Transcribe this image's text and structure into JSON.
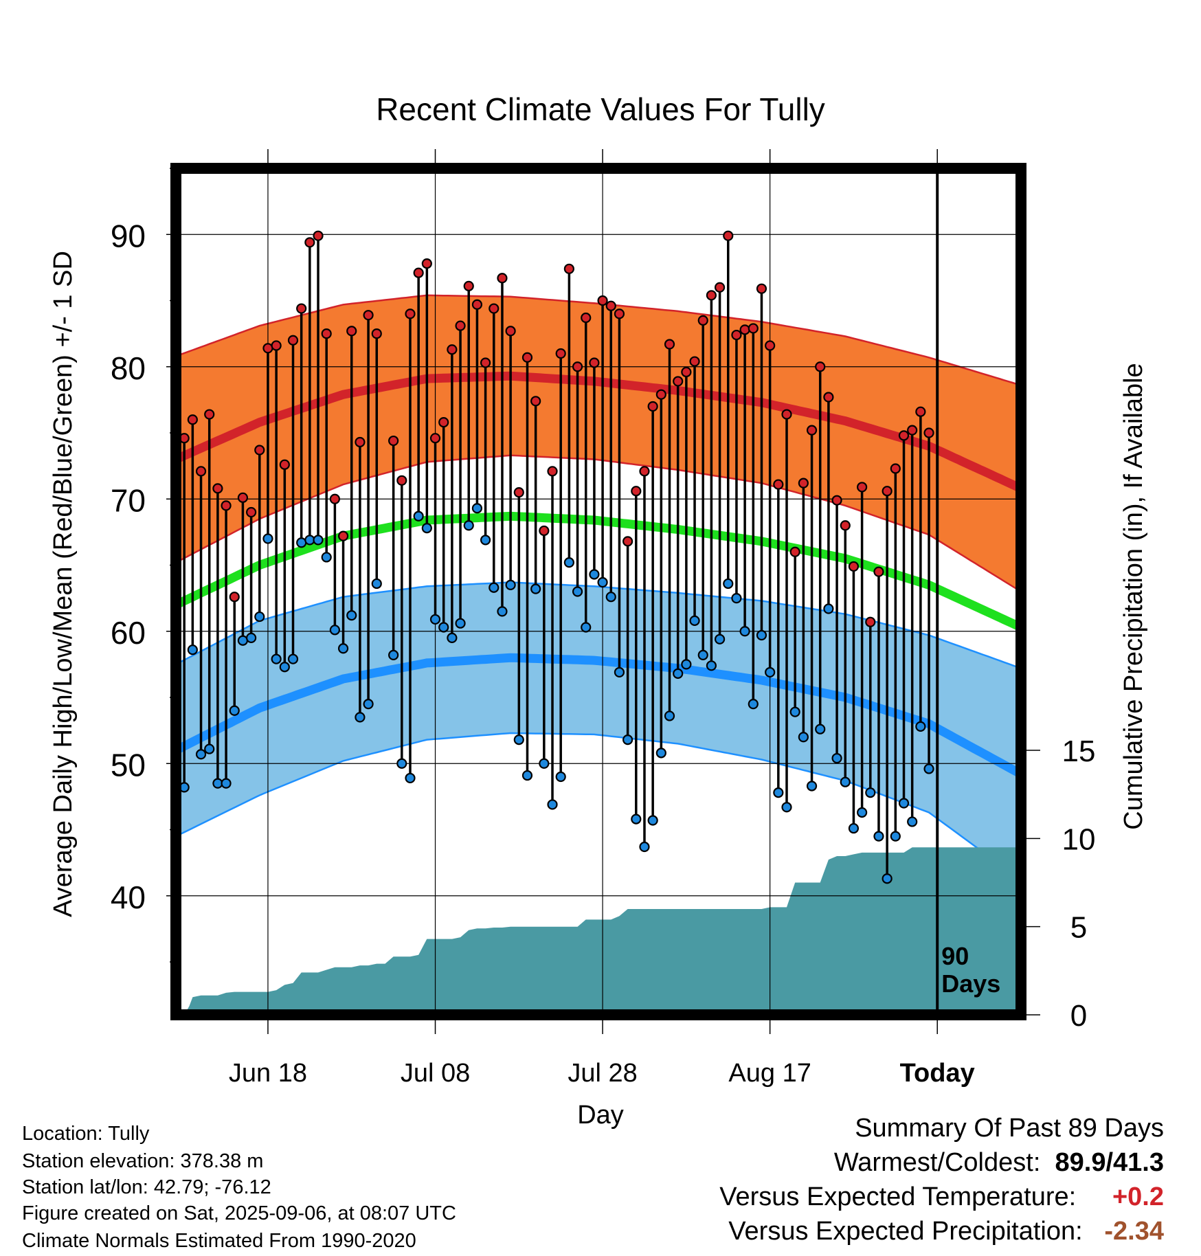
{
  "chart_data": {
    "type": "line",
    "title": "Recent Climate Values For Tully",
    "xlabel": "Day",
    "ylabel": "Average Daily High/Low/Mean (Red/Blue/Green) +/- 1 SD",
    "y2label": "Cumulative Precipitation (in), If Available",
    "ylim": [
      31,
      95
    ],
    "y2lim": [
      0,
      48
    ],
    "xlim": [
      0,
      101
    ],
    "yticks": [
      90,
      80,
      70,
      60,
      50,
      40
    ],
    "y2ticks": [
      15,
      10,
      5,
      0
    ],
    "xticks": [
      {
        "day": 11,
        "label": "Jun 18"
      },
      {
        "day": 31,
        "label": "Jul 08"
      },
      {
        "day": 51,
        "label": "Jul 28"
      },
      {
        "day": 71,
        "label": "Aug 17"
      },
      {
        "day": 91,
        "label": "Today"
      }
    ],
    "today_marker": {
      "day": 91,
      "label_line1": "90",
      "label_line2": "Days"
    },
    "grid": true,
    "colors": {
      "high_band": "#f47a30",
      "high_line": "#d2232a",
      "low_band": "#85c3e8",
      "low_line": "#1e90ff",
      "mean_line": "#1ee01e",
      "precip": "#4a9aa3",
      "high_marker": "#d2232a",
      "low_marker": "#1e88dd",
      "positive_anomaly": "#d2232a",
      "precip_anomaly": "#a0522d"
    },
    "normals": {
      "x": [
        0,
        10,
        20,
        30,
        40,
        50,
        60,
        70,
        80,
        90,
        101
      ],
      "high_mean": [
        73.0,
        75.8,
        77.9,
        79.1,
        79.3,
        78.9,
        78.2,
        77.3,
        75.9,
        74.0,
        70.8
      ],
      "high_sd": [
        7.8,
        7.3,
        6.8,
        6.3,
        6.0,
        5.9,
        6.0,
        6.1,
        6.4,
        6.7,
        7.8
      ],
      "low_mean": [
        51.0,
        54.2,
        56.4,
        57.6,
        58.0,
        57.8,
        57.2,
        56.3,
        55.0,
        53.0,
        49.2
      ],
      "low_sd": [
        6.5,
        6.6,
        6.2,
        5.8,
        5.7,
        5.6,
        5.7,
        6.0,
        6.3,
        6.7,
        8.0
      ],
      "mean_mean": [
        62.0,
        65.0,
        67.2,
        68.4,
        68.7,
        68.4,
        67.7,
        66.8,
        65.5,
        63.5,
        60.3
      ]
    },
    "series": [
      {
        "name": "High",
        "x": [
          1,
          2,
          3,
          4,
          5,
          6,
          7,
          8,
          9,
          10,
          11,
          12,
          13,
          14,
          15,
          16,
          17,
          18,
          19,
          20,
          21,
          22,
          23,
          24,
          25,
          26,
          27,
          28,
          29,
          30,
          31,
          32,
          33,
          34,
          35,
          36,
          37,
          38,
          39,
          40,
          41,
          42,
          43,
          44,
          45,
          46,
          47,
          48,
          49,
          50,
          51,
          52,
          53,
          54,
          55,
          56,
          57,
          58,
          59,
          60,
          61,
          62,
          63,
          64,
          65,
          66,
          67,
          68,
          69,
          70,
          71,
          72,
          73,
          74,
          75,
          76,
          77,
          78,
          79,
          80,
          81,
          82,
          83,
          84,
          85,
          86,
          87,
          88,
          89,
          90,
          91
        ],
        "values": [
          74.6,
          76.0,
          72.1,
          76.4,
          70.8,
          69.5,
          62.6,
          70.1,
          69.0,
          73.7,
          81.4,
          81.6,
          72.6,
          82.0,
          84.4,
          89.4,
          89.9,
          82.5,
          70.0,
          67.2,
          82.7,
          74.3,
          83.9,
          82.5,
          null,
          74.4,
          71.4,
          84.0,
          87.1,
          87.8,
          74.6,
          75.8,
          81.3,
          83.1,
          86.1,
          84.7,
          80.3,
          84.4,
          86.7,
          82.7,
          70.5,
          80.7,
          77.4,
          67.6,
          72.1,
          81.0,
          87.4,
          80.0,
          83.7,
          80.3,
          85.0,
          84.6,
          84.0,
          66.8,
          70.6,
          72.1,
          77.0,
          77.9,
          81.7,
          78.9,
          79.6,
          80.4,
          83.5,
          85.4,
          86.0,
          89.9,
          82.4,
          82.8,
          82.9,
          85.9,
          81.6,
          71.1,
          76.4,
          66.0,
          71.2,
          75.2,
          80.0,
          77.7,
          69.9,
          68.0,
          64.9,
          70.9,
          60.7,
          64.5,
          70.6,
          72.3,
          74.8,
          75.2,
          76.6,
          75.0,
          null
        ]
      },
      {
        "name": "Low",
        "x": [
          1,
          2,
          3,
          4,
          5,
          6,
          7,
          8,
          9,
          10,
          11,
          12,
          13,
          14,
          15,
          16,
          17,
          18,
          19,
          20,
          21,
          22,
          23,
          24,
          25,
          26,
          27,
          28,
          29,
          30,
          31,
          32,
          33,
          34,
          35,
          36,
          37,
          38,
          39,
          40,
          41,
          42,
          43,
          44,
          45,
          46,
          47,
          48,
          49,
          50,
          51,
          52,
          53,
          54,
          55,
          56,
          57,
          58,
          59,
          60,
          61,
          62,
          63,
          64,
          65,
          66,
          67,
          68,
          69,
          70,
          71,
          72,
          73,
          74,
          75,
          76,
          77,
          78,
          79,
          80,
          81,
          82,
          83,
          84,
          85,
          86,
          87,
          88,
          89,
          90,
          91
        ],
        "values": [
          48.2,
          58.6,
          50.7,
          51.1,
          48.5,
          48.5,
          54.0,
          59.3,
          59.5,
          61.1,
          67.0,
          57.9,
          57.3,
          57.9,
          66.7,
          66.9,
          66.9,
          65.6,
          60.1,
          58.7,
          61.2,
          53.5,
          54.5,
          63.6,
          null,
          58.2,
          50.0,
          48.9,
          68.7,
          67.8,
          60.9,
          60.3,
          59.5,
          60.6,
          68.0,
          69.3,
          66.9,
          63.3,
          61.5,
          63.5,
          51.8,
          49.1,
          63.2,
          50.0,
          46.9,
          49.0,
          65.2,
          63.0,
          60.3,
          64.3,
          63.7,
          62.6,
          56.9,
          51.8,
          45.8,
          43.7,
          45.7,
          50.8,
          53.6,
          56.8,
          57.5,
          60.8,
          58.2,
          57.4,
          59.4,
          63.6,
          62.5,
          60.0,
          54.5,
          59.7,
          56.9,
          47.8,
          46.7,
          53.9,
          52.0,
          48.3,
          52.6,
          61.7,
          50.4,
          48.6,
          45.1,
          46.3,
          47.8,
          44.5,
          41.3,
          44.5,
          47.0,
          45.6,
          52.8,
          49.6,
          null
        ]
      }
    ],
    "precipitation": {
      "x": [
        1,
        1.6,
        2,
        3,
        4,
        5,
        6,
        7,
        8,
        9,
        10,
        11,
        12,
        13,
        14,
        15,
        16,
        17,
        18,
        19,
        20,
        21,
        22,
        23,
        24,
        25,
        26,
        27,
        28,
        29,
        30,
        31,
        32,
        33,
        34,
        35,
        36,
        37,
        38,
        39,
        40,
        41,
        42,
        43,
        44,
        45,
        46,
        47,
        48,
        49,
        50,
        51,
        52,
        53,
        54,
        55,
        56,
        57,
        58,
        59,
        60,
        61,
        62,
        63,
        64,
        65,
        66,
        67,
        68,
        69,
        70,
        71,
        72,
        73,
        74,
        75,
        76,
        77,
        78,
        79,
        80,
        81,
        82,
        83,
        84,
        85,
        86,
        87,
        88,
        89,
        90,
        91,
        101
      ],
      "values": [
        0.0,
        0.5,
        1.0,
        1.1,
        1.1,
        1.1,
        1.25,
        1.3,
        1.3,
        1.3,
        1.3,
        1.3,
        1.4,
        1.7,
        1.8,
        2.4,
        2.4,
        2.4,
        2.55,
        2.7,
        2.7,
        2.7,
        2.8,
        2.8,
        2.9,
        2.9,
        3.3,
        3.3,
        3.3,
        3.4,
        4.3,
        4.3,
        4.3,
        4.3,
        4.4,
        4.8,
        4.9,
        4.9,
        4.95,
        4.95,
        5.0,
        5.0,
        5.0,
        5.0,
        5.0,
        5.0,
        5.0,
        5.0,
        5.0,
        5.4,
        5.4,
        5.4,
        5.4,
        5.6,
        6.0,
        6.0,
        6.0,
        6.0,
        6.0,
        6.0,
        6.0,
        6.0,
        6.0,
        6.0,
        6.0,
        6.0,
        6.0,
        6.0,
        6.0,
        6.0,
        6.0,
        6.1,
        6.1,
        6.1,
        7.5,
        7.5,
        7.5,
        7.5,
        8.8,
        9.0,
        9.0,
        9.1,
        9.2,
        9.2,
        9.2,
        9.2,
        9.2,
        9.2,
        9.5,
        9.5,
        9.5,
        9.5,
        9.5
      ]
    }
  },
  "footer": {
    "location": "Location: Tully",
    "elevation": "Station elevation: 378.38 m",
    "latlon": "Station lat/lon: 42.79; -76.12",
    "created": "Figure created on Sat, 2025-09-06, at 08:07 UTC",
    "normals": "Climate Normals Estimated From 1990-2020"
  },
  "summary": {
    "heading": "Summary Of Past 89 Days",
    "warm_cold_label": "Warmest/Coldest:",
    "warm_cold_value": "89.9/41.3",
    "temp_label": "Versus Expected Temperature:",
    "temp_value": "+0.2",
    "precip_label": "Versus Expected Precipitation:",
    "precip_value": "-2.34"
  }
}
